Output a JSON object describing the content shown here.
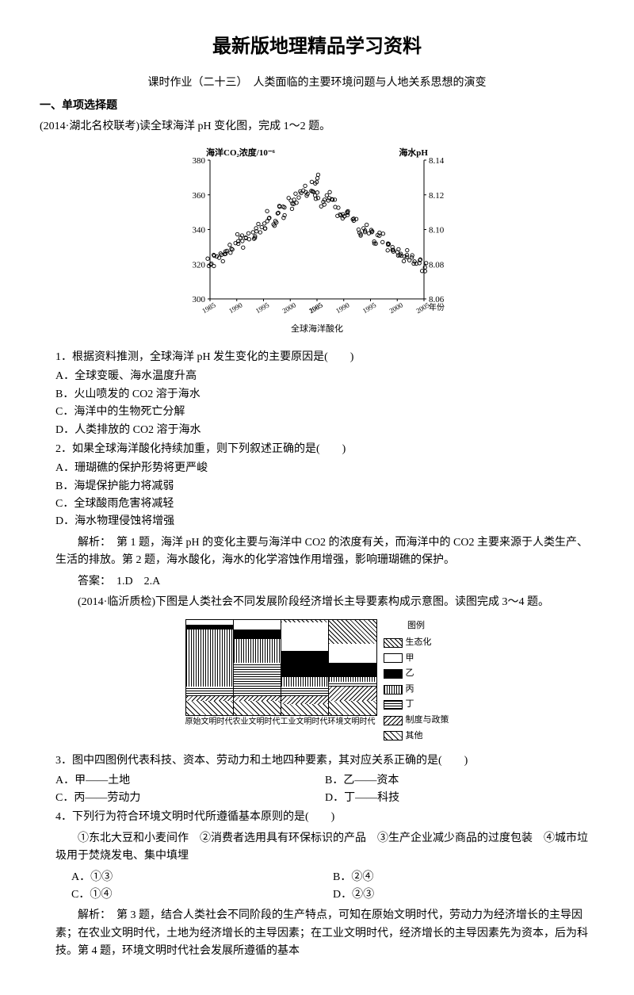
{
  "title": "最新版地理精品学习资料",
  "subtitle": "课时作业（二十三）　人类面临的主要环境问题与人地关系思想的演变",
  "section1": "一、单项选择题",
  "source1": "(2014·湖北名校联考)读全球海洋 pH 变化图，完成 1～2 题。",
  "chart1": {
    "left_axis_label": "海洋CO₂浓度/10⁻⁶",
    "right_axis_label": "海水pH",
    "left_ticks": [
      300,
      320,
      340,
      360,
      380
    ],
    "right_ticks": [
      8.06,
      8.08,
      8.1,
      8.12,
      8.14
    ],
    "x_ticks": [
      "1985",
      "1990",
      "1995",
      "2000",
      "2005",
      "1985",
      "1990",
      "1995",
      "2000",
      "2005"
    ],
    "x_caption": "全球海洋酸化",
    "x_suffix": "年份",
    "left_series": [
      [
        1985,
        320
      ],
      [
        1986,
        322
      ],
      [
        1987,
        325
      ],
      [
        1988,
        328
      ],
      [
        1989,
        330
      ],
      [
        1990,
        335
      ],
      [
        1991,
        333
      ],
      [
        1992,
        335
      ],
      [
        1993,
        338
      ],
      [
        1994,
        340
      ],
      [
        1995,
        344
      ],
      [
        1996,
        348
      ],
      [
        1997,
        345
      ],
      [
        1998,
        352
      ],
      [
        1999,
        350
      ],
      [
        2000,
        355
      ],
      [
        2001,
        358
      ],
      [
        2002,
        360
      ],
      [
        2003,
        363
      ],
      [
        2004,
        365
      ],
      [
        2005,
        370
      ]
    ],
    "right_series": [
      [
        1985,
        8.12
      ],
      [
        1986,
        8.115
      ],
      [
        1987,
        8.12
      ],
      [
        1988,
        8.115
      ],
      [
        1989,
        8.11
      ],
      [
        1990,
        8.11
      ],
      [
        1991,
        8.108
      ],
      [
        1992,
        8.105
      ],
      [
        1993,
        8.1
      ],
      [
        1994,
        8.1
      ],
      [
        1995,
        8.098
      ],
      [
        1996,
        8.095
      ],
      [
        1997,
        8.095
      ],
      [
        1998,
        8.09
      ],
      [
        1999,
        8.09
      ],
      [
        2000,
        8.088
      ],
      [
        2001,
        8.085
      ],
      [
        2002,
        8.085
      ],
      [
        2003,
        8.082
      ],
      [
        2004,
        8.08
      ],
      [
        2005,
        8.078
      ]
    ],
    "jitter_points": 90
  },
  "q1": {
    "stem": "1．根据资料推测，全球海洋 pH 发生变化的主要原因是(　　)",
    "A": "A．全球变暖、海水温度升高",
    "B": "B．火山喷发的 CO2 溶于海水",
    "C": "C．海洋中的生物死亡分解",
    "D": "D．人类排放的 CO2 溶于海水"
  },
  "q2": {
    "stem": "2．如果全球海洋酸化持续加重，则下列叙述正确的是(　　)",
    "A": "A．珊瑚礁的保护形势将更严峻",
    "B": "B．海堤保护能力将减弱",
    "C": "C．全球酸雨危害将减轻",
    "D": "D．海水物理侵蚀将增强"
  },
  "analysis1": "解析：　第 1 题，海洋 pH 的变化主要与海洋中 CO2 的浓度有关，而海洋中的 CO2 主要来源于人类生产、生活的排放。第 2 题，海水酸化，海水的化学溶蚀作用增强，影响珊瑚礁的保护。",
  "answer1": "答案：　1.D　2.A",
  "source2": "(2014·临沂质检)下图是人类社会不同发展阶段经济增长主导要素构成示意图。读图完成 3～4 题。",
  "chart2": {
    "legend_title": "图例",
    "legend": [
      "生态化",
      "甲",
      "乙",
      "丙",
      "丁",
      "制度与政策",
      "其他"
    ],
    "x_labels": [
      "原始文明时代",
      "农业文明时代",
      "工业文明时代",
      "环境文明时代"
    ]
  },
  "q3": {
    "stem": "3．图中四图例代表科技、资本、劳动力和土地四种要素，其对应关系正确的是(　　)",
    "A": "A．甲——土地",
    "B": "B．乙——资本",
    "C": "C．丙——劳动力",
    "D": "D．丁——科技"
  },
  "q4": {
    "stem": "4．下列行为符合环境文明时代所遵循基本原则的是(　　)",
    "items": "①东北大豆和小麦间作　②消费者选用具有环保标识的产品　③生产企业减少商品的过度包装　④城市垃圾用于焚烧发电、集中填埋",
    "A": "A．①③",
    "B": "B．②④",
    "C": "C．①④",
    "D": "D．②③"
  },
  "analysis2": "解析：　第 3 题，结合人类社会不同阶段的生产特点，可知在原始文明时代，劳动力为经济增长的主导因素；在农业文明时代，土地为经济增长的主导因素；在工业文明时代，经济增长的主导因素先为资本，后为科技。第 4 题，环境文明时代社会发展所遵循的基本"
}
